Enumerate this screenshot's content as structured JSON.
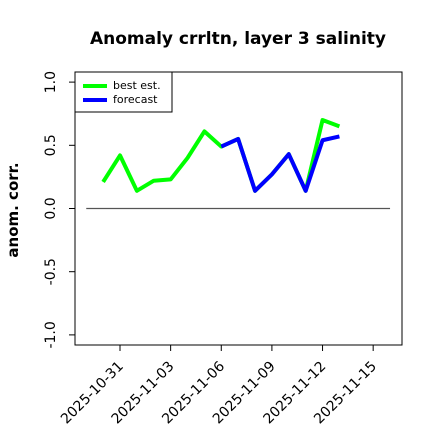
{
  "chart_data": {
    "type": "line",
    "title": "Anomaly crrltn, layer 3 salinity",
    "ylabel": "anom. corr.",
    "x": [
      "2025-10-30",
      "2025-10-31",
      "2025-11-01",
      "2025-11-02",
      "2025-11-03",
      "2025-11-04",
      "2025-11-05",
      "2025-11-06",
      "2025-11-07",
      "2025-11-08",
      "2025-11-09",
      "2025-11-10",
      "2025-11-11",
      "2025-11-12",
      "2025-11-13"
    ],
    "series": [
      {
        "name": "best est.",
        "color": "#00ff00",
        "values": [
          0.21,
          0.42,
          0.14,
          0.22,
          0.23,
          0.4,
          0.61,
          0.49,
          0.55,
          0.14,
          0.27,
          0.43,
          0.14,
          0.7,
          0.65
        ]
      },
      {
        "name": "forecast",
        "color": "#0000ff",
        "values": [
          null,
          null,
          null,
          null,
          null,
          null,
          null,
          0.49,
          0.55,
          0.14,
          0.27,
          0.43,
          0.14,
          0.54,
          0.57
        ]
      }
    ],
    "xlim": [
      "2025-10-28T08:00",
      "2025-11-16T17:00"
    ],
    "xticks": [
      "2025-10-31",
      "2025-11-03",
      "2025-11-06",
      "2025-11-09",
      "2025-11-12",
      "2025-11-15"
    ],
    "xtick_colors": [
      "#000000",
      "#000000",
      "#228b22",
      "#000000",
      "#000000",
      "#000000"
    ],
    "ylim": [
      -1.08,
      1.08
    ],
    "yticks": [
      {
        "value": -1,
        "label": "-1.0"
      },
      -0.5,
      {
        "value": 0,
        "label": "0.0"
      },
      0.5,
      {
        "value": 1,
        "label": "1.0"
      }
    ],
    "hline": {
      "value": 0,
      "from": "2025-10-29",
      "to": "2025-11-16",
      "color": "#555555"
    },
    "legend": "top-left"
  }
}
